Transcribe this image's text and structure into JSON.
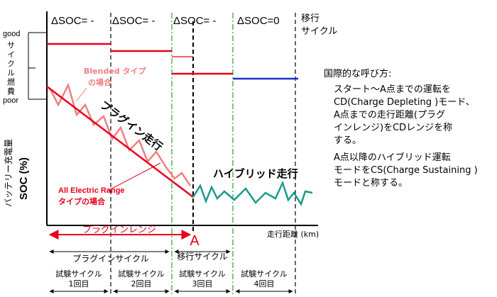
{
  "delta_soc_labels": [
    "ΔSOC= -",
    "ΔSOC= -",
    "ΔSOC= -",
    "ΔSOC=0"
  ],
  "transition_header": [
    "移行",
    "サイクル"
  ],
  "y_axis": {
    "good": "good",
    "poor": "poor",
    "fuel_label": "サイクル燃費",
    "battery_label": "バッテリー充電量",
    "soc_label": "SOC (%)"
  },
  "x_axis_label": "走行距離 (km)",
  "point_a": "A",
  "annotations": {
    "blended": [
      "Blended タイプ",
      "の場合"
    ],
    "all_electric": [
      "All Electric Range",
      "タイプの場合"
    ],
    "plugin_drive": "プラグイン走行",
    "hybrid_drive": "ハイブリッド走行"
  },
  "bottom": {
    "plugin_range": "プラグインレンジ",
    "plugin_cycle": "プラグインサイクル",
    "transition_cycle": "移行サイクル",
    "test_cycles": [
      [
        "試験サイクル",
        "1回目"
      ],
      [
        "試験サイクル",
        "2回目"
      ],
      [
        "試験サイクル",
        "3回目"
      ],
      [
        "試験サイクル",
        "4回目"
      ]
    ]
  },
  "side_panel": {
    "title": "国際的な呼び方:",
    "para1": "スタート～A点までの運転を\nCD(Charge Depleting )モード、\nA点までの走行距離(プラグ\nインレンジ)をCDレンジを称\nする。",
    "para2": "A点以降のハイブリッド運転\nモードをCS(Charge Sustaining )\nモードと称する。"
  },
  "colors": {
    "red": "#e8001c",
    "pink": "#f08080",
    "blue": "#1f2fd0",
    "teal": "#1a9a8a",
    "green_dash": "#2aa02a"
  }
}
